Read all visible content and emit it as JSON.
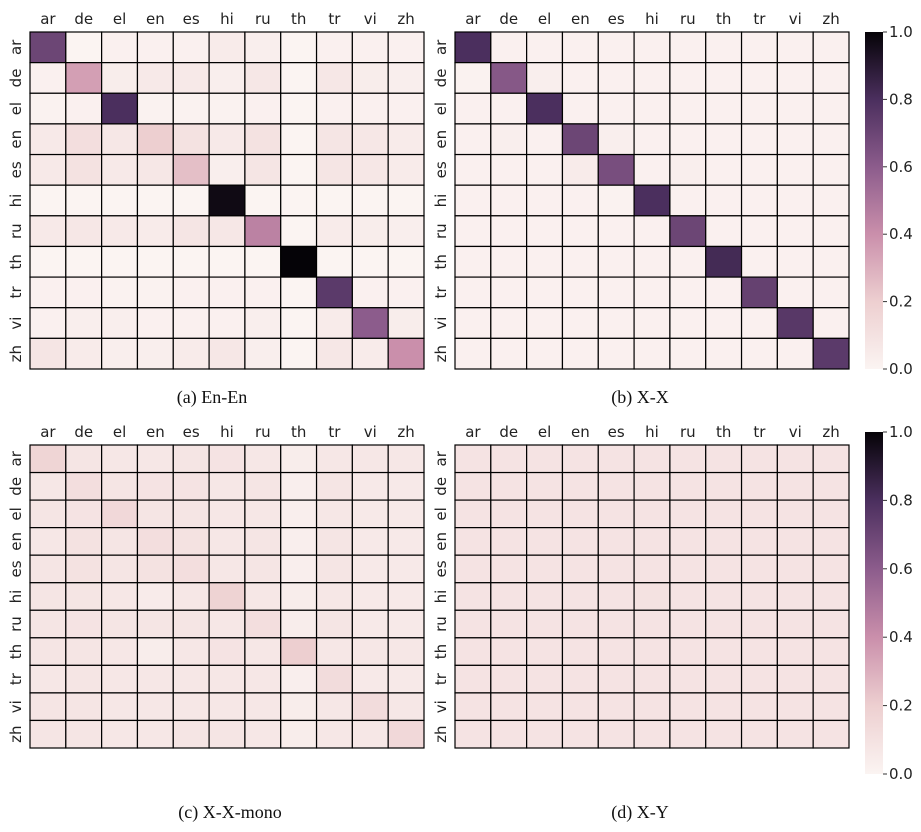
{
  "chart_data": [
    {
      "type": "heatmap",
      "caption": "(a) En-En",
      "x_labels": [
        "ar",
        "de",
        "el",
        "en",
        "es",
        "hi",
        "ru",
        "th",
        "tr",
        "vi",
        "zh"
      ],
      "y_labels": [
        "ar",
        "de",
        "el",
        "en",
        "es",
        "hi",
        "ru",
        "th",
        "tr",
        "vi",
        "zh"
      ],
      "values": [
        [
          0.7,
          0.0,
          0.02,
          0.02,
          0.02,
          0.05,
          0.03,
          0.0,
          0.02,
          0.02,
          0.02
        ],
        [
          0.02,
          0.35,
          0.04,
          0.06,
          0.06,
          0.03,
          0.07,
          0.0,
          0.07,
          0.04,
          0.03
        ],
        [
          0.01,
          0.02,
          0.8,
          0.01,
          0.01,
          0.01,
          0.02,
          0.0,
          0.02,
          0.02,
          0.02
        ],
        [
          0.06,
          0.12,
          0.07,
          0.2,
          0.1,
          0.06,
          0.1,
          0.0,
          0.08,
          0.07,
          0.05
        ],
        [
          0.06,
          0.1,
          0.06,
          0.07,
          0.25,
          0.03,
          0.08,
          0.0,
          0.08,
          0.07,
          0.05
        ],
        [
          0.0,
          0.0,
          0.0,
          0.0,
          0.0,
          0.97,
          0.0,
          0.0,
          0.0,
          0.0,
          0.0
        ],
        [
          0.06,
          0.07,
          0.06,
          0.05,
          0.08,
          0.07,
          0.45,
          0.0,
          0.05,
          0.04,
          0.03
        ],
        [
          0.0,
          0.0,
          0.0,
          0.0,
          0.0,
          0.0,
          0.0,
          1.0,
          0.0,
          0.0,
          0.0
        ],
        [
          0.02,
          0.02,
          0.01,
          0.01,
          0.02,
          0.02,
          0.02,
          0.0,
          0.75,
          0.02,
          0.02
        ],
        [
          0.02,
          0.03,
          0.03,
          0.02,
          0.02,
          0.02,
          0.03,
          0.0,
          0.05,
          0.6,
          0.04
        ],
        [
          0.08,
          0.05,
          0.03,
          0.03,
          0.05,
          0.07,
          0.03,
          0.0,
          0.07,
          0.05,
          0.4
        ]
      ],
      "colorbar": false
    },
    {
      "type": "heatmap",
      "caption": "(b) X-X",
      "x_labels": [
        "ar",
        "de",
        "el",
        "en",
        "es",
        "hi",
        "ru",
        "th",
        "tr",
        "vi",
        "zh"
      ],
      "y_labels": [
        "ar",
        "de",
        "el",
        "en",
        "es",
        "hi",
        "ru",
        "th",
        "tr",
        "vi",
        "zh"
      ],
      "values": [
        [
          0.8,
          0.02,
          0.02,
          0.02,
          0.02,
          0.02,
          0.02,
          0.02,
          0.02,
          0.02,
          0.02
        ],
        [
          0.01,
          0.62,
          0.03,
          0.02,
          0.02,
          0.02,
          0.02,
          0.02,
          0.02,
          0.02,
          0.02
        ],
        [
          0.02,
          0.02,
          0.8,
          0.02,
          0.02,
          0.02,
          0.02,
          0.02,
          0.02,
          0.02,
          0.02
        ],
        [
          0.02,
          0.03,
          0.02,
          0.7,
          0.03,
          0.02,
          0.02,
          0.02,
          0.02,
          0.02,
          0.02
        ],
        [
          0.02,
          0.02,
          0.02,
          0.05,
          0.66,
          0.02,
          0.03,
          0.02,
          0.02,
          0.02,
          0.02
        ],
        [
          0.02,
          0.02,
          0.02,
          0.02,
          0.01,
          0.8,
          0.02,
          0.02,
          0.02,
          0.02,
          0.02
        ],
        [
          0.02,
          0.02,
          0.02,
          0.02,
          0.02,
          0.02,
          0.7,
          0.02,
          0.02,
          0.02,
          0.02
        ],
        [
          0.02,
          0.02,
          0.02,
          0.02,
          0.02,
          0.02,
          0.02,
          0.82,
          0.02,
          0.02,
          0.02
        ],
        [
          0.02,
          0.02,
          0.02,
          0.02,
          0.02,
          0.02,
          0.02,
          0.02,
          0.72,
          0.02,
          0.02
        ],
        [
          0.02,
          0.02,
          0.02,
          0.02,
          0.02,
          0.02,
          0.02,
          0.02,
          0.02,
          0.76,
          0.02
        ],
        [
          0.02,
          0.02,
          0.02,
          0.02,
          0.02,
          0.02,
          0.02,
          0.02,
          0.02,
          0.02,
          0.75
        ]
      ],
      "colorbar": true
    },
    {
      "type": "heatmap",
      "caption": "(c) X-X-mono",
      "x_labels": [
        "ar",
        "de",
        "el",
        "en",
        "es",
        "hi",
        "ru",
        "th",
        "tr",
        "vi",
        "zh"
      ],
      "y_labels": [
        "ar",
        "de",
        "el",
        "en",
        "es",
        "hi",
        "ru",
        "th",
        "tr",
        "vi",
        "zh"
      ],
      "values": [
        [
          0.17,
          0.08,
          0.07,
          0.07,
          0.08,
          0.09,
          0.07,
          0.04,
          0.07,
          0.07,
          0.07
        ],
        [
          0.07,
          0.12,
          0.08,
          0.09,
          0.09,
          0.07,
          0.08,
          0.03,
          0.08,
          0.06,
          0.06
        ],
        [
          0.08,
          0.09,
          0.15,
          0.08,
          0.08,
          0.07,
          0.07,
          0.03,
          0.07,
          0.06,
          0.06
        ],
        [
          0.07,
          0.1,
          0.08,
          0.12,
          0.1,
          0.07,
          0.08,
          0.03,
          0.08,
          0.06,
          0.06
        ],
        [
          0.08,
          0.1,
          0.08,
          0.1,
          0.12,
          0.07,
          0.08,
          0.03,
          0.08,
          0.06,
          0.06
        ],
        [
          0.08,
          0.08,
          0.07,
          0.05,
          0.07,
          0.18,
          0.07,
          0.04,
          0.07,
          0.06,
          0.06
        ],
        [
          0.08,
          0.09,
          0.08,
          0.08,
          0.08,
          0.07,
          0.12,
          0.04,
          0.08,
          0.06,
          0.06
        ],
        [
          0.08,
          0.08,
          0.07,
          0.04,
          0.07,
          0.09,
          0.07,
          0.2,
          0.07,
          0.07,
          0.07
        ],
        [
          0.07,
          0.08,
          0.07,
          0.07,
          0.07,
          0.07,
          0.07,
          0.03,
          0.13,
          0.06,
          0.06
        ],
        [
          0.08,
          0.08,
          0.07,
          0.07,
          0.07,
          0.07,
          0.07,
          0.04,
          0.07,
          0.13,
          0.07
        ],
        [
          0.08,
          0.08,
          0.07,
          0.07,
          0.08,
          0.08,
          0.07,
          0.04,
          0.07,
          0.07,
          0.15
        ]
      ],
      "colorbar": false
    },
    {
      "type": "heatmap",
      "caption": "(d) X-Y",
      "x_labels": [
        "ar",
        "de",
        "el",
        "en",
        "es",
        "hi",
        "ru",
        "th",
        "tr",
        "vi",
        "zh"
      ],
      "y_labels": [
        "ar",
        "de",
        "el",
        "en",
        "es",
        "hi",
        "ru",
        "th",
        "tr",
        "vi",
        "zh"
      ],
      "values": [
        [
          0.09,
          0.09,
          0.09,
          0.09,
          0.09,
          0.09,
          0.09,
          0.09,
          0.09,
          0.09,
          0.09
        ],
        [
          0.09,
          0.09,
          0.09,
          0.09,
          0.09,
          0.09,
          0.09,
          0.09,
          0.09,
          0.09,
          0.09
        ],
        [
          0.09,
          0.09,
          0.09,
          0.09,
          0.09,
          0.09,
          0.09,
          0.09,
          0.09,
          0.09,
          0.09
        ],
        [
          0.09,
          0.09,
          0.09,
          0.09,
          0.09,
          0.09,
          0.09,
          0.09,
          0.09,
          0.09,
          0.09
        ],
        [
          0.09,
          0.09,
          0.09,
          0.09,
          0.09,
          0.09,
          0.09,
          0.09,
          0.09,
          0.09,
          0.09
        ],
        [
          0.09,
          0.09,
          0.09,
          0.09,
          0.09,
          0.1,
          0.09,
          0.09,
          0.09,
          0.09,
          0.09
        ],
        [
          0.09,
          0.09,
          0.09,
          0.09,
          0.09,
          0.09,
          0.09,
          0.09,
          0.09,
          0.09,
          0.09
        ],
        [
          0.09,
          0.09,
          0.09,
          0.09,
          0.09,
          0.09,
          0.09,
          0.09,
          0.09,
          0.09,
          0.09
        ],
        [
          0.09,
          0.09,
          0.09,
          0.09,
          0.09,
          0.09,
          0.09,
          0.09,
          0.09,
          0.09,
          0.09
        ],
        [
          0.09,
          0.09,
          0.09,
          0.09,
          0.09,
          0.09,
          0.09,
          0.09,
          0.09,
          0.09,
          0.09
        ],
        [
          0.09,
          0.09,
          0.09,
          0.09,
          0.09,
          0.09,
          0.09,
          0.09,
          0.09,
          0.09,
          0.09
        ]
      ],
      "colorbar": true
    }
  ],
  "colorscale": {
    "range": [
      0.0,
      1.0
    ],
    "ticks": [
      "0.0",
      "0.2",
      "0.4",
      "0.6",
      "0.8",
      "1.0"
    ],
    "stops": [
      "#fbf4f2",
      "#edcfd0",
      "#ca8fab",
      "#8c5c8c",
      "#4b2f5e",
      "#050307"
    ]
  }
}
